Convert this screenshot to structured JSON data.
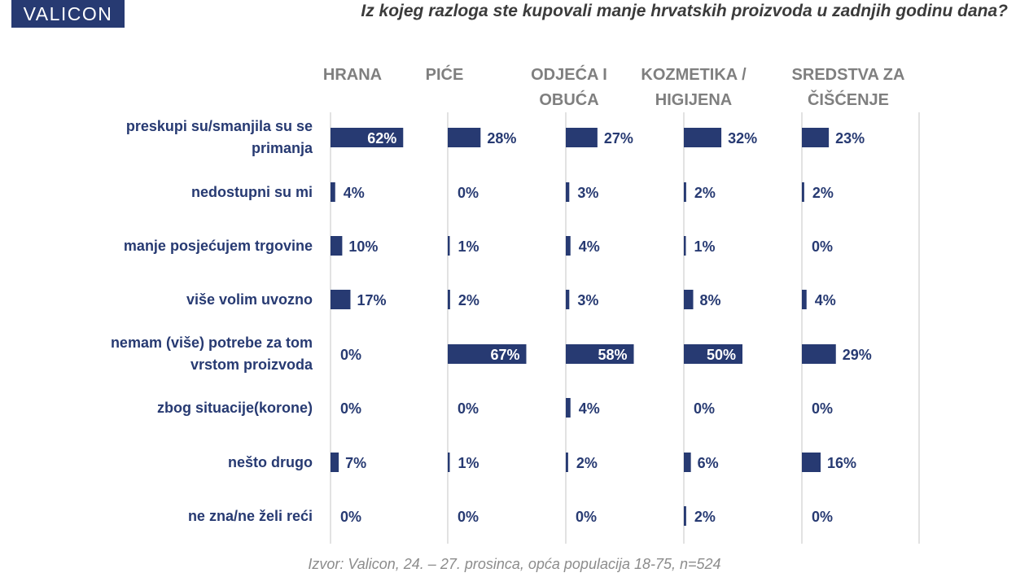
{
  "logo": "VALICON",
  "title": "Iz kojeg razloga ste kupovali manje hrvatskih proizvoda u zadnjih godinu dana?",
  "source": "Izvor: Valicon, 24. – 27. prosinca, opća populacija 18-75, n=524",
  "colors": {
    "bar": "#273a72",
    "text": "#273a72",
    "header": "#7f7f7f"
  },
  "chart_data": {
    "type": "bar",
    "orientation": "horizontal",
    "unit": "%",
    "categories": [
      "preskupi su/smanjila su se primanja",
      "nedostupni su mi",
      "manje posjećujem trgovine",
      "više volim uvozno",
      "nemam (više) potrebe za tom vrstom proizvoda",
      "zbog situacije(korone)",
      "nešto drugo",
      "ne zna/ne želi reći"
    ],
    "series": [
      {
        "name": "HRANA",
        "values": [
          62,
          4,
          10,
          17,
          0,
          0,
          7,
          0
        ]
      },
      {
        "name": "PIĆE",
        "values": [
          28,
          0,
          1,
          2,
          67,
          0,
          1,
          0
        ]
      },
      {
        "name": "ODJEĆA I OBUĆA",
        "values": [
          27,
          3,
          4,
          3,
          58,
          4,
          2,
          0
        ]
      },
      {
        "name": "KOZMETIKA / HIGIJENA",
        "values": [
          32,
          2,
          1,
          8,
          50,
          0,
          6,
          2
        ]
      },
      {
        "name": "SREDSTVA ZA ČIŠĆENJE",
        "values": [
          23,
          2,
          0,
          4,
          29,
          0,
          16,
          0
        ]
      }
    ],
    "xlim": [
      0,
      100
    ]
  }
}
